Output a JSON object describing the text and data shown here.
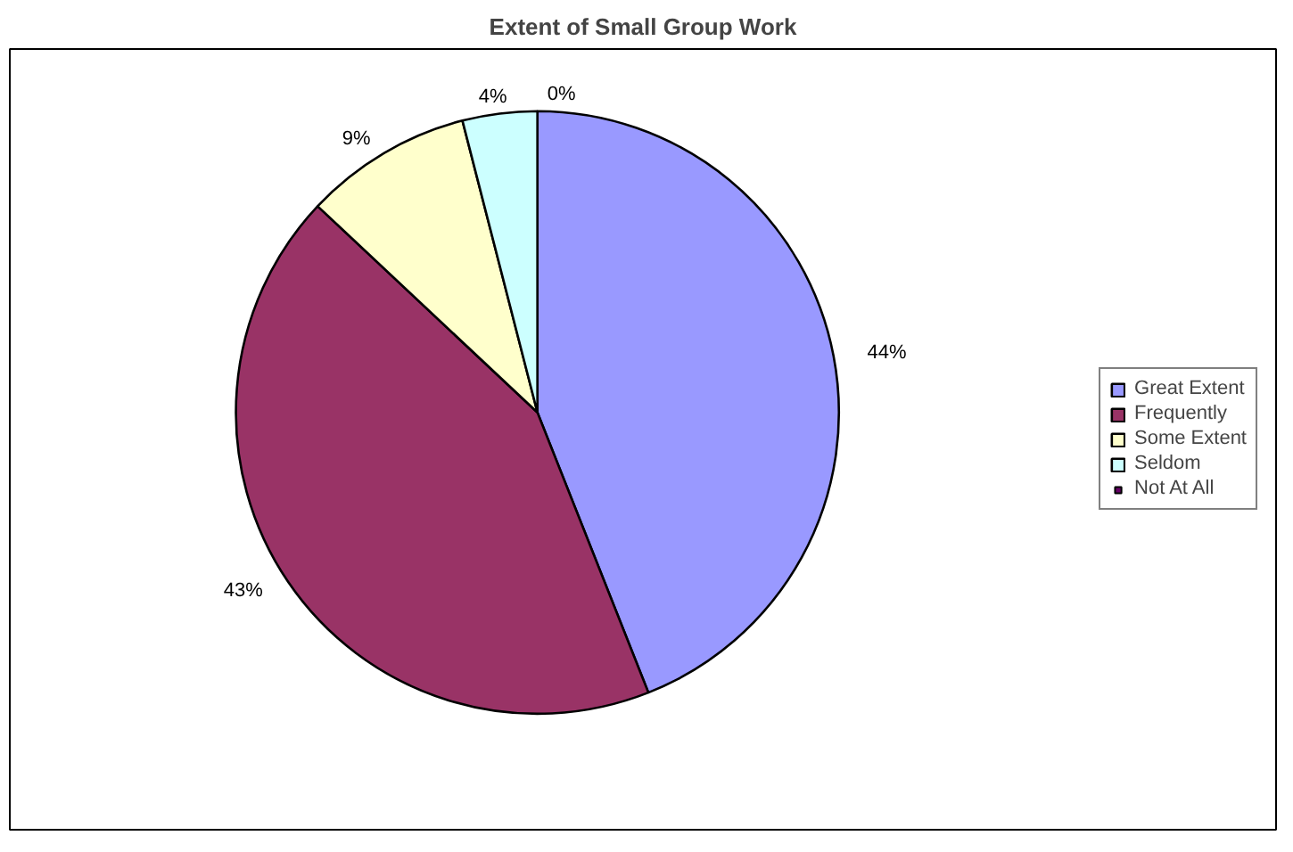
{
  "chart_data": {
    "type": "pie",
    "title": "Extent of Small Group Work",
    "categories": [
      "Great Extent",
      "Frequently",
      "Some Extent",
      "Seldom",
      "Not At All"
    ],
    "values": [
      44,
      43,
      9,
      4,
      0
    ],
    "value_labels": [
      "44%",
      "43%",
      "9%",
      "4%",
      "0%"
    ],
    "colors": [
      "#9999ff",
      "#993366",
      "#ffffcc",
      "#ccffff",
      "#660066"
    ],
    "legend": "right"
  }
}
